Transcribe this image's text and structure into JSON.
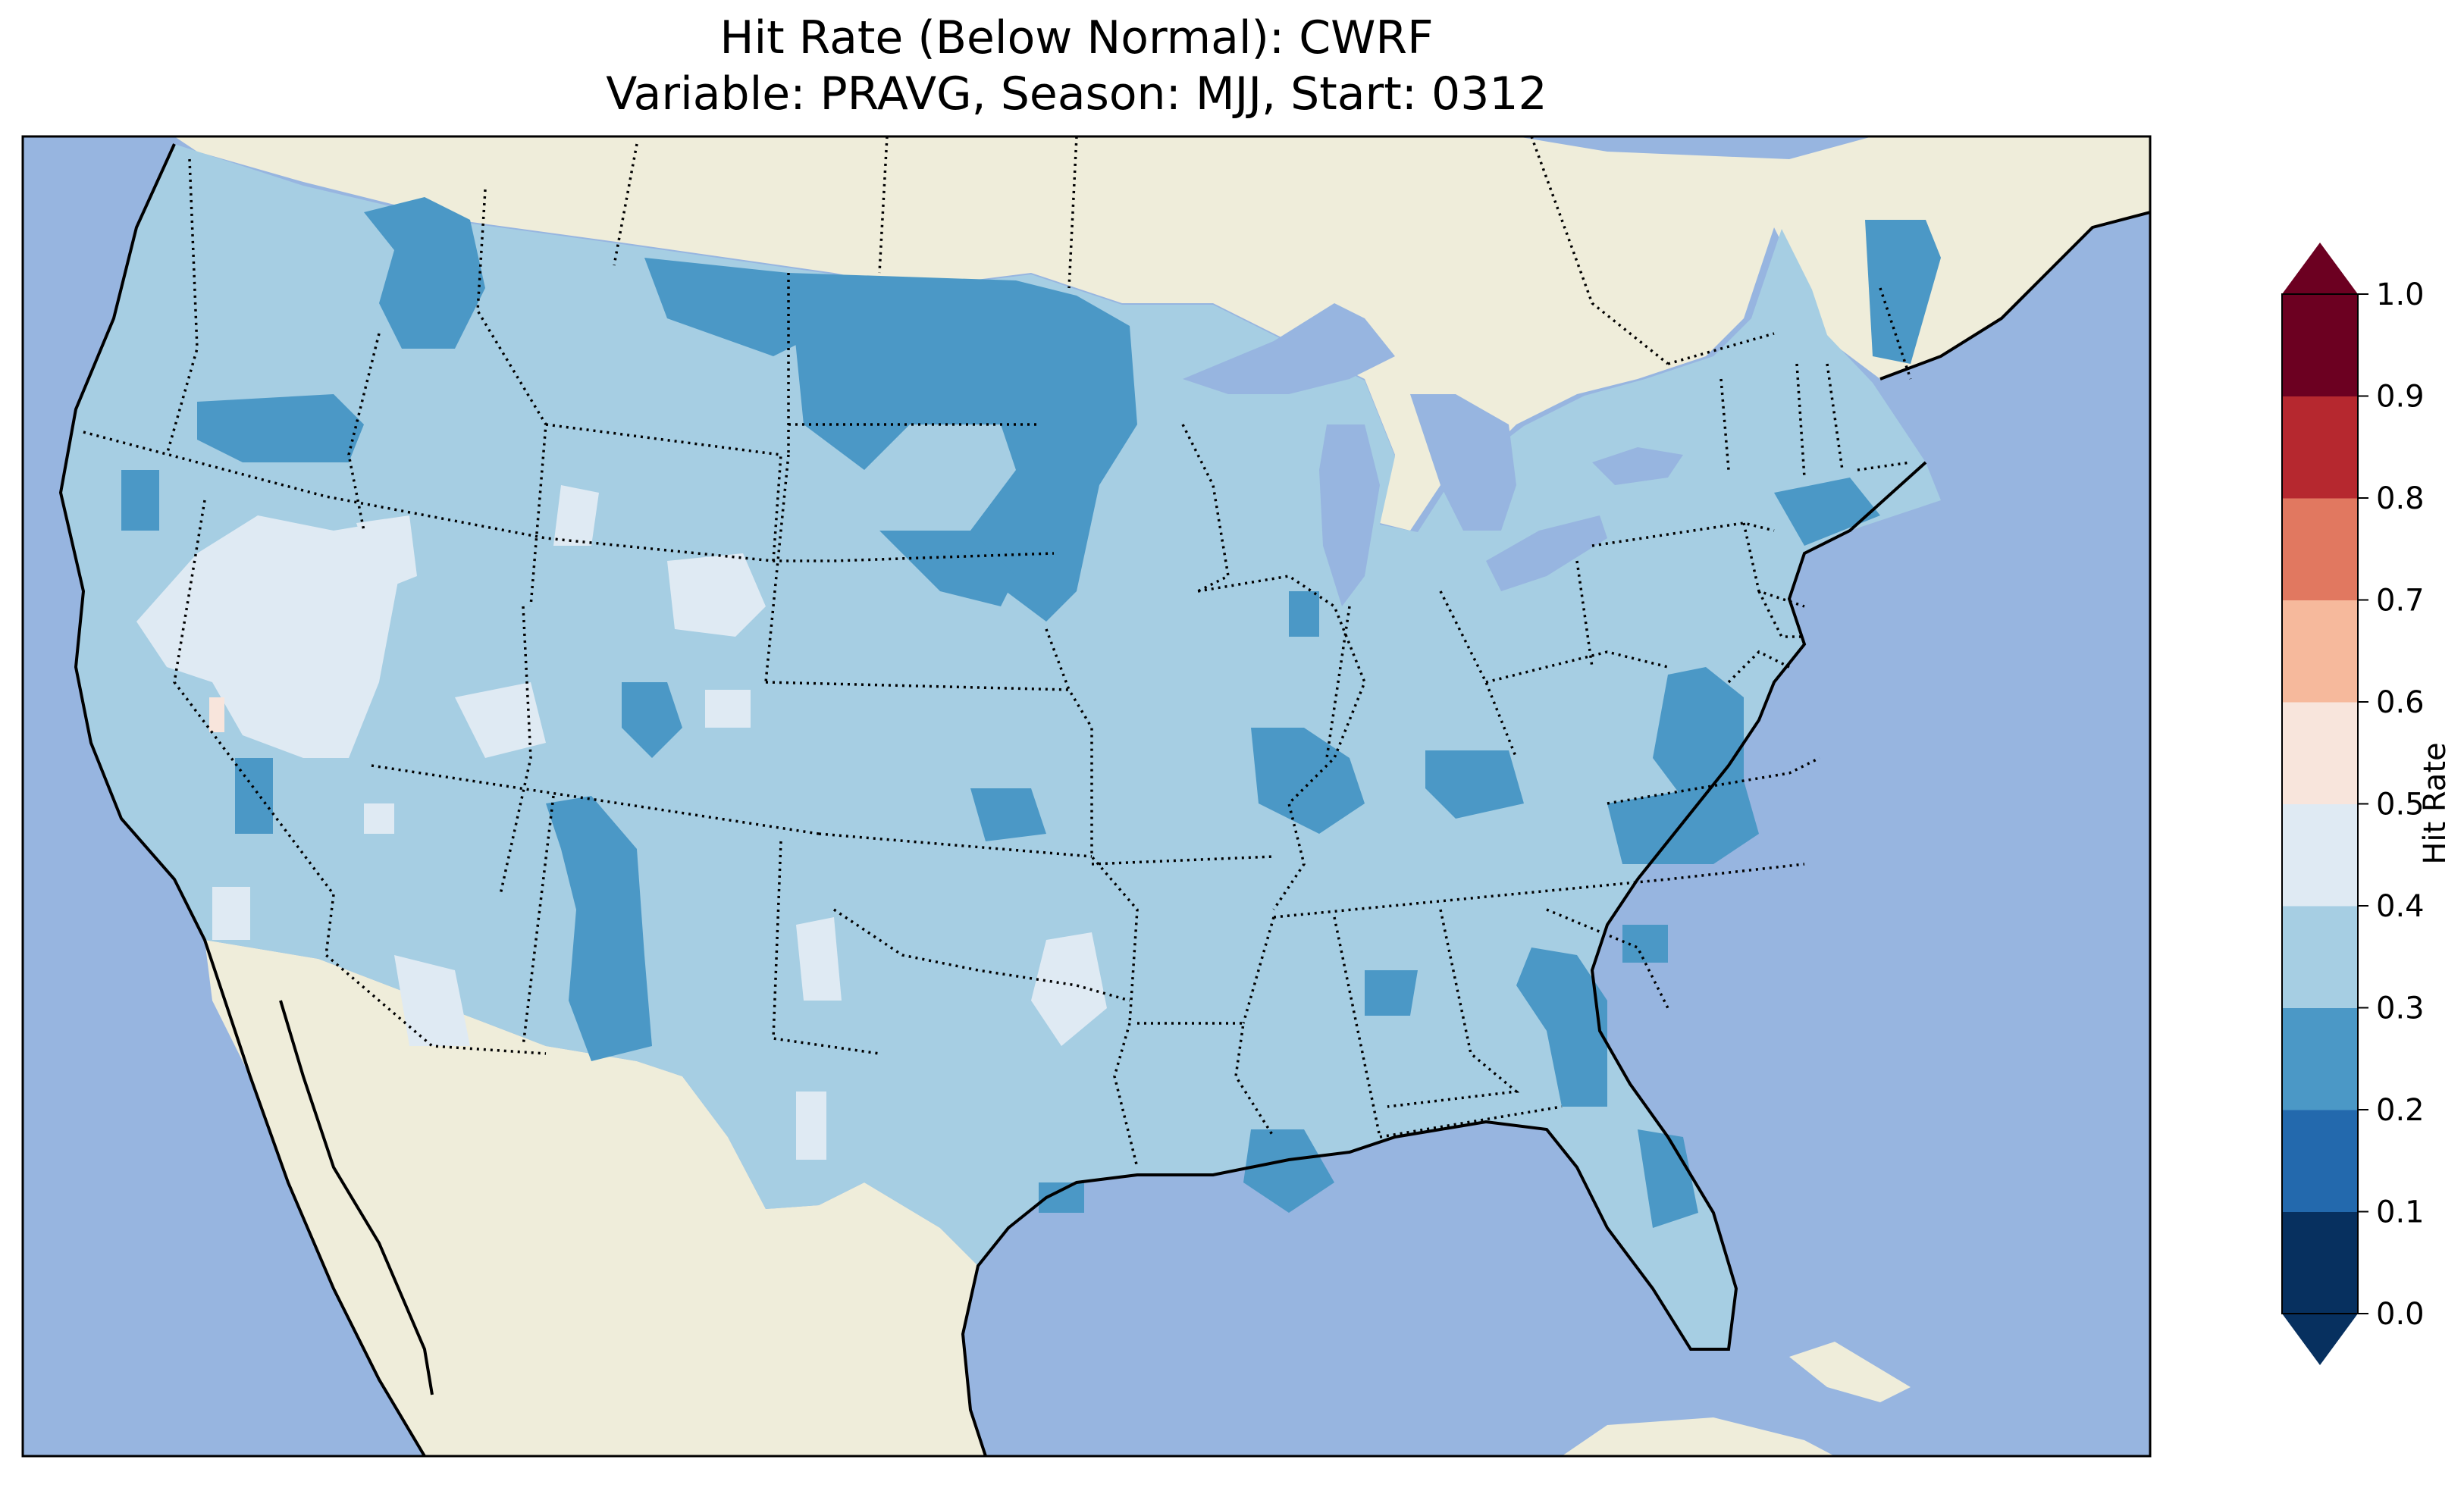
{
  "figure": {
    "title_line1": "Hit Rate (Below Normal): CWRF",
    "title_line2": "Variable: PRAVG, Season: MJJ, Start: 0312"
  },
  "map": {
    "ocean_color": "#97b5e0",
    "land_color": "#efedda",
    "lake_color": "#97b5e0",
    "border_style": "dotted"
  },
  "colorbar": {
    "label": "Hit Rate",
    "ticks": [
      "0.0",
      "0.1",
      "0.2",
      "0.3",
      "0.4",
      "0.5",
      "0.6",
      "0.7",
      "0.8",
      "0.9",
      "1.0"
    ],
    "colors": [
      "#053061",
      "#2166ac",
      "#4393c3",
      "#92c5de",
      "#d1e5f0",
      "#f7f7f7",
      "#fddbc7",
      "#f4a582",
      "#d6604d",
      "#b2182b",
      "#67001f"
    ],
    "bin_colors": [
      "#07305f",
      "#2369ad",
      "#4b98c6",
      "#a6cee3",
      "#dfeaf3",
      "#f8e5dc",
      "#f6b99c",
      "#e17860",
      "#b6282f",
      "#6c0021"
    ],
    "extend": "both"
  },
  "chart_data": {
    "type": "heatmap",
    "title": "Hit Rate (Below Normal): CWRF",
    "subtitle": "Variable: PRAVG, Season: MJJ, Start: 0312",
    "colorbar_label": "Hit Rate",
    "range": [
      0.0,
      1.0
    ],
    "levels": [
      0.0,
      0.1,
      0.2,
      0.3,
      0.4,
      0.5,
      0.6,
      0.7,
      0.8,
      0.9,
      1.0
    ],
    "dominant_bin": "0.3-0.4",
    "regions_0_2_to_0_3": [
      "Northern Great Plains (North Dakota)",
      "Iowa / Nebraska border",
      "Idaho / western Montana",
      "New Mexico",
      "Virginia",
      "North Carolina",
      "Georgia",
      "Louisiana",
      "Arkansas",
      "southern New England"
    ],
    "regions_0_4_to_0_5": [
      "Nevada",
      "southern California",
      "Wyoming",
      "western Oklahoma / north Texas"
    ],
    "regions_0_5_to_0_6": [
      "east-central California (isolated)"
    ]
  }
}
